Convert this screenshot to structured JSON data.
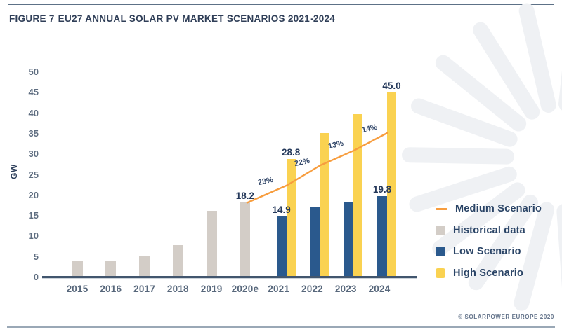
{
  "page": {
    "figure_label": "FIGURE 7",
    "figure_title": "EU27 ANNUAL SOLAR PV MARKET SCENARIOS 2021-2024",
    "copyright": "© SOLARPOWER EUROPE 2020"
  },
  "colors": {
    "historical": "#D3CDC7",
    "low": "#2A598D",
    "high": "#FAD251",
    "medium": "#F79D3E",
    "axis": "#42566E"
  },
  "chart_data": {
    "type": "bar",
    "title": "EU27 ANNUAL SOLAR PV MARKET SCENARIOS 2021-2024",
    "xlabel": "",
    "ylabel": "GW",
    "ylim": [
      0,
      50
    ],
    "yticks": [
      0,
      5,
      10,
      15,
      20,
      25,
      30,
      35,
      40,
      45,
      50
    ],
    "grid": false,
    "legend_position": "right",
    "categories": [
      "2015",
      "2016",
      "2017",
      "2018",
      "2019",
      "2020e",
      "2021",
      "2022",
      "2023",
      "2024"
    ],
    "series": [
      {
        "name": "Historical data",
        "role": "historical",
        "type": "bar",
        "color": "#D3CDC7",
        "values": [
          4.1,
          4.0,
          5.1,
          7.8,
          16.2,
          18.2,
          null,
          null,
          null,
          null
        ]
      },
      {
        "name": "Low Scenario",
        "role": "low",
        "type": "bar",
        "color": "#2A598D",
        "values": [
          null,
          null,
          null,
          null,
          null,
          null,
          14.9,
          17.2,
          18.5,
          19.8
        ]
      },
      {
        "name": "High Scenario",
        "role": "high",
        "type": "bar",
        "color": "#FAD251",
        "values": [
          null,
          null,
          null,
          null,
          null,
          null,
          28.8,
          35.2,
          39.7,
          45.0
        ]
      },
      {
        "name": "Medium Scenario",
        "role": "medium",
        "type": "line",
        "color": "#F79D3E",
        "values": [
          null,
          null,
          null,
          null,
          null,
          18.2,
          22.4,
          27.3,
          30.9,
          35.2
        ],
        "growth_labels": [
          "23%",
          "22%",
          "13%",
          "14%"
        ]
      }
    ],
    "value_labels": [
      {
        "series": "historical",
        "category": "2020e",
        "text": "18.2"
      },
      {
        "series": "low",
        "category": "2021",
        "text": "14.9"
      },
      {
        "series": "high",
        "category": "2021",
        "text": "28.8"
      },
      {
        "series": "low",
        "category": "2024",
        "text": "19.8"
      },
      {
        "series": "high",
        "category": "2024",
        "text": "45.0"
      }
    ],
    "legend": [
      {
        "label": "Medium Scenario",
        "swatch": "line",
        "color": "#F79D3E"
      },
      {
        "label": "Historical data",
        "swatch": "square",
        "color": "#D3CDC7"
      },
      {
        "label": "Low Scenario",
        "swatch": "square",
        "color": "#2A598D"
      },
      {
        "label": "High Scenario",
        "swatch": "square",
        "color": "#FAD251"
      }
    ]
  }
}
